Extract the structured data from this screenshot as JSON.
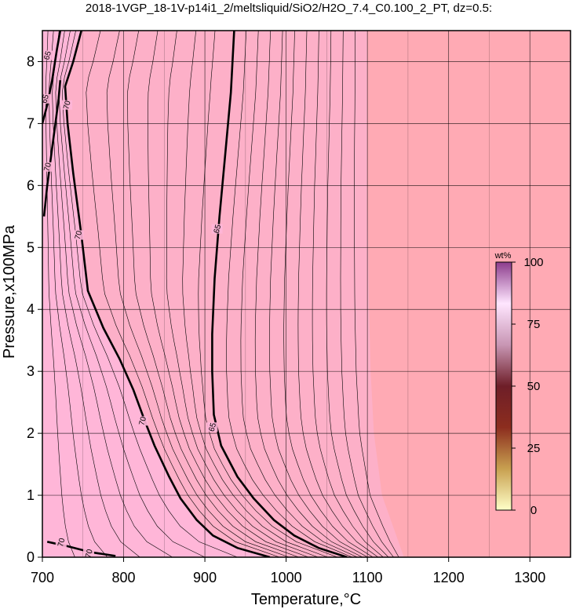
{
  "chart_data": {
    "type": "contour",
    "title": "2018-1VGP_18-1V-p14i1_2/meltsliquid/SiO2/H2O_7.4_C0.100_2_PT, dz=0.5:",
    "xlabel": "Temperature,°C",
    "ylabel": "Pressure,x100MPa",
    "xlim": [
      700,
      1350
    ],
    "ylim": [
      0,
      8.5
    ],
    "x_ticks": [
      700,
      800,
      900,
      1000,
      1100,
      1200,
      1300
    ],
    "y_ticks": [
      0,
      1,
      2,
      3,
      4,
      5,
      6,
      7,
      8
    ],
    "grid": true,
    "field_colors": {
      "solid_region": "#ffaab4",
      "melt_region": "#fdb0c8",
      "low_region": "#ffb6d8"
    },
    "colorbar": {
      "unit": "wt%",
      "ticks": [
        0,
        25,
        50,
        75,
        100
      ],
      "range": [
        0,
        100
      ],
      "colors": [
        "#ffffc8",
        "#c8a050",
        "#8c2d1e",
        "#6e1e28",
        "#c896b4",
        "#ffe6ff",
        "#8c3c8c"
      ]
    },
    "contour_interval": 0.5,
    "major_contours": [
      {
        "level": 70,
        "label": "70",
        "points": [
          [
            722,
            7.7
          ],
          [
            720,
            7.4
          ],
          [
            716,
            7.0
          ],
          [
            712,
            6.6
          ],
          [
            706,
            6.0
          ],
          [
            702,
            5.5
          ]
        ]
      },
      {
        "level": 70,
        "label": "70",
        "points": [
          [
            748,
            8.5
          ],
          [
            738,
            8.0
          ],
          [
            728,
            7.6
          ],
          [
            731,
            7.0
          ],
          [
            738,
            6.2
          ],
          [
            748,
            5.2
          ],
          [
            756,
            4.3
          ],
          [
            775,
            3.7
          ],
          [
            795,
            3.2
          ],
          [
            812,
            2.7
          ],
          [
            826,
            2.2
          ],
          [
            838,
            1.8
          ],
          [
            856,
            1.3
          ],
          [
            870,
            0.95
          ],
          [
            890,
            0.6
          ],
          [
            910,
            0.35
          ],
          [
            940,
            0.15
          ],
          [
            980,
            0.0
          ]
        ]
      },
      {
        "level": 65,
        "label": "65",
        "points": [
          [
            722,
            8.5
          ],
          [
            718,
            8.2
          ],
          [
            712,
            7.7
          ],
          [
            706,
            7.3
          ],
          [
            700,
            7.0
          ]
        ]
      },
      {
        "level": 65,
        "label": "65",
        "points": [
          [
            936,
            8.5
          ],
          [
            932,
            7.5
          ],
          [
            925,
            6.5
          ],
          [
            918,
            5.5
          ],
          [
            912,
            4.5
          ],
          [
            909,
            3.6
          ],
          [
            909,
            3.0
          ],
          [
            911,
            2.3
          ],
          [
            920,
            1.8
          ],
          [
            940,
            1.3
          ],
          [
            960,
            0.95
          ],
          [
            985,
            0.6
          ],
          [
            1010,
            0.35
          ],
          [
            1040,
            0.15
          ],
          [
            1075,
            0.0
          ]
        ]
      },
      {
        "level": 70,
        "label": "70",
        "points": [
          [
            706,
            0.25
          ],
          [
            730,
            0.18
          ],
          [
            760,
            0.08
          ],
          [
            790,
            0.02
          ]
        ]
      }
    ],
    "contour_labels": [
      {
        "text": "65",
        "x": 706,
        "y": 8.1
      },
      {
        "text": "65",
        "x": 703,
        "y": 7.4
      },
      {
        "text": "70",
        "x": 730,
        "y": 7.3
      },
      {
        "text": "70",
        "x": 706,
        "y": 6.3
      },
      {
        "text": "70",
        "x": 744,
        "y": 5.2
      },
      {
        "text": "65",
        "x": 915,
        "y": 5.3
      },
      {
        "text": "70",
        "x": 823,
        "y": 2.2
      },
      {
        "text": "65",
        "x": 909,
        "y": 2.1
      },
      {
        "text": "70",
        "x": 723,
        "y": 0.24
      },
      {
        "text": "70",
        "x": 757,
        "y": 0.06
      }
    ],
    "solidus_temperature_profile": {
      "pressures": [
        0,
        1,
        2,
        3,
        4,
        5,
        6,
        7,
        8,
        8.5
      ],
      "temperatures": [
        1145,
        1118,
        1108,
        1104,
        1102,
        1101,
        1100,
        1100,
        1100,
        1100
      ]
    }
  }
}
